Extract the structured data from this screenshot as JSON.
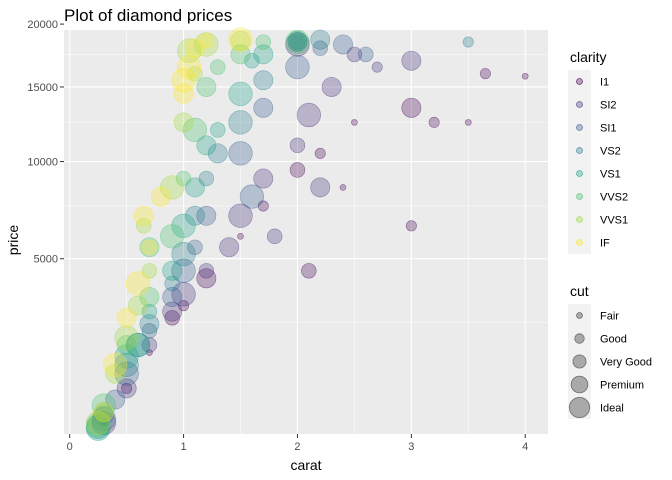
{
  "chart_data": {
    "type": "scatter",
    "title": "Plot of diamond prices",
    "xlabel": "carat",
    "ylabel": "price",
    "x_scale": "linear",
    "y_scale": "sqrt",
    "xlim": [
      -0.05,
      4.2
    ],
    "ylim": [
      320,
      19500
    ],
    "x_ticks": [
      0,
      1,
      2,
      3,
      4
    ],
    "y_ticks": [
      5000,
      10000,
      15000,
      20000
    ],
    "grid": true,
    "panel_background": "#EBEBEB",
    "point_alpha": 0.3,
    "legend_position": "right",
    "legends": [
      {
        "title": "clarity",
        "aesthetic": "color",
        "entries": [
          "I1",
          "SI2",
          "SI1",
          "VS2",
          "VS1",
          "VVS2",
          "VVS1",
          "IF"
        ],
        "colors": [
          "#440154",
          "#46337E",
          "#365C8D",
          "#277F8E",
          "#1FA187",
          "#4AC16D",
          "#9FDA3A",
          "#FDE725"
        ]
      },
      {
        "title": "cut",
        "aesthetic": "size",
        "entries": [
          "Fair",
          "Good",
          "Very Good",
          "Premium",
          "Ideal"
        ],
        "sizes": [
          1,
          2,
          3,
          4,
          5
        ]
      }
    ],
    "series": [
      {
        "name": "I1",
        "x": [
          0.3,
          0.5,
          0.7,
          0.9,
          1.0,
          1.2,
          1.5,
          1.7,
          2.0,
          2.2,
          2.5,
          3.0,
          3.2,
          3.5,
          3.65,
          4.0,
          2.1,
          3.0,
          2.4
        ],
        "y": [
          450,
          1000,
          1800,
          2800,
          3200,
          4200,
          6000,
          7500,
          9500,
          10500,
          12500,
          13500,
          12500,
          12500,
          16000,
          15800,
          4500,
          6500,
          8500
        ],
        "cut": [
          1,
          2,
          1,
          3,
          2,
          4,
          1,
          2,
          3,
          2,
          1,
          4,
          2,
          1,
          2,
          1,
          3,
          2,
          1
        ]
      },
      {
        "name": "SI2",
        "x": [
          0.3,
          0.5,
          0.7,
          0.9,
          1.0,
          1.2,
          1.4,
          1.5,
          1.7,
          2.0,
          2.1,
          2.3,
          2.5,
          2.7,
          3.0,
          2.0,
          1.8,
          2.2
        ],
        "y": [
          450,
          1000,
          2000,
          3000,
          3600,
          4500,
          5500,
          7000,
          9000,
          11000,
          13000,
          15000,
          17500,
          16500,
          17000,
          18300,
          6000,
          8500
        ],
        "cut": [
          5,
          4,
          3,
          4,
          5,
          3,
          4,
          5,
          4,
          3,
          5,
          4,
          3,
          2,
          4,
          5,
          3,
          4
        ]
      },
      {
        "name": "SI1",
        "x": [
          0.3,
          0.4,
          0.5,
          0.7,
          0.9,
          1.0,
          1.1,
          1.2,
          1.5,
          1.7,
          2.0,
          2.2,
          2.4,
          2.6,
          2.0,
          1.6
        ],
        "y": [
          500,
          800,
          1300,
          2400,
          3500,
          4500,
          5500,
          7000,
          10500,
          13500,
          16500,
          18000,
          18300,
          17500,
          18500,
          8000
        ],
        "cut": [
          5,
          4,
          5,
          3,
          4,
          5,
          3,
          4,
          5,
          4,
          5,
          3,
          4,
          3,
          4,
          5
        ]
      },
      {
        "name": "VS2",
        "x": [
          0.25,
          0.3,
          0.5,
          0.7,
          0.9,
          1.0,
          1.1,
          1.2,
          1.5,
          1.7,
          2.0,
          2.2,
          3.5,
          0.6,
          1.3
        ],
        "y": [
          400,
          550,
          1500,
          2600,
          4000,
          5200,
          7000,
          9000,
          12500,
          15500,
          18500,
          18700,
          18500,
          2000,
          10500
        ],
        "cut": [
          5,
          4,
          5,
          4,
          3,
          5,
          4,
          3,
          5,
          4,
          3,
          4,
          2,
          5,
          4
        ]
      },
      {
        "name": "VS1",
        "x": [
          0.25,
          0.3,
          0.5,
          0.7,
          0.9,
          1.0,
          1.1,
          1.3,
          1.5,
          1.7,
          2.0,
          0.6,
          1.2,
          1.6
        ],
        "y": [
          380,
          600,
          1700,
          3000,
          4500,
          6500,
          8500,
          12000,
          14500,
          17500,
          18600,
          2000,
          11000,
          17000
        ],
        "cut": [
          5,
          4,
          5,
          3,
          4,
          5,
          4,
          3,
          5,
          4,
          4,
          5,
          4,
          3
        ]
      },
      {
        "name": "VVS2",
        "x": [
          0.25,
          0.3,
          0.5,
          0.7,
          0.9,
          1.0,
          1.1,
          1.2,
          1.5,
          1.7,
          2.0,
          0.7,
          1.3
        ],
        "y": [
          420,
          700,
          2000,
          3500,
          6000,
          9000,
          12000,
          15000,
          17500,
          18500,
          18500,
          5500,
          16500
        ],
        "cut": [
          5,
          5,
          4,
          4,
          5,
          3,
          5,
          4,
          4,
          3,
          5,
          4,
          3
        ]
      },
      {
        "name": "VVS1",
        "x": [
          0.25,
          0.4,
          0.5,
          0.6,
          0.7,
          0.9,
          1.0,
          1.1,
          1.2,
          1.5,
          0.65,
          1.05
        ],
        "y": [
          450,
          1300,
          2200,
          3200,
          4500,
          8500,
          12500,
          16000,
          18300,
          18600,
          6500,
          17800
        ],
        "cut": [
          5,
          4,
          5,
          4,
          3,
          5,
          4,
          3,
          5,
          4,
          3,
          5
        ]
      },
      {
        "name": "IF",
        "x": [
          0.3,
          0.4,
          0.5,
          0.6,
          0.7,
          0.8,
          1.0,
          1.1,
          1.2,
          1.5,
          0.65,
          1.05,
          1.0
        ],
        "y": [
          600,
          1500,
          2800,
          4000,
          5500,
          8000,
          15500,
          18000,
          18600,
          18700,
          7000,
          16500,
          14500
        ],
        "cut": [
          4,
          5,
          4,
          5,
          3,
          4,
          5,
          4,
          3,
          5,
          4,
          5,
          4
        ]
      }
    ]
  }
}
